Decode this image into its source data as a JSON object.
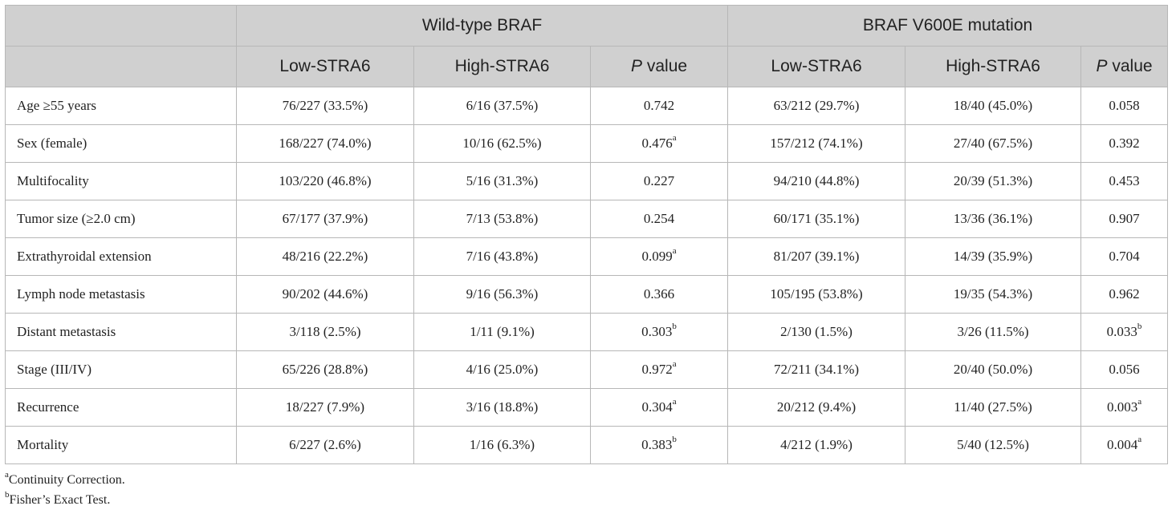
{
  "groups": [
    "Wild-type BRAF",
    "BRAF V600E mutation"
  ],
  "subheaders": [
    "Low-STRA6",
    "High-STRA6",
    "value",
    "Low-STRA6",
    "High-STRA6",
    "value"
  ],
  "p_italic": "P",
  "rows": [
    {
      "label": "Age ≥55 years",
      "c": [
        "76/227 (33.5%)",
        "6/16 (37.5%)",
        "0.742",
        "63/212 (29.7%)",
        "18/40 (45.0%)",
        "0.058"
      ],
      "s3": "",
      "s6": ""
    },
    {
      "label": "Sex (female)",
      "c": [
        "168/227 (74.0%)",
        "10/16 (62.5%)",
        "0.476",
        "157/212 (74.1%)",
        "27/40 (67.5%)",
        "0.392"
      ],
      "s3": "a",
      "s6": ""
    },
    {
      "label": "Multifocality",
      "c": [
        "103/220 (46.8%)",
        "5/16 (31.3%)",
        "0.227",
        "94/210 (44.8%)",
        "20/39 (51.3%)",
        "0.453"
      ],
      "s3": "",
      "s6": ""
    },
    {
      "label": "Tumor size (≥2.0 cm)",
      "c": [
        "67/177 (37.9%)",
        "7/13 (53.8%)",
        "0.254",
        "60/171 (35.1%)",
        "13/36 (36.1%)",
        "0.907"
      ],
      "s3": "",
      "s6": ""
    },
    {
      "label": "Extrathyroidal extension",
      "c": [
        "48/216 (22.2%)",
        "7/16 (43.8%)",
        "0.099",
        "81/207 (39.1%)",
        "14/39 (35.9%)",
        "0.704"
      ],
      "s3": "a",
      "s6": ""
    },
    {
      "label": "Lymph node metastasis",
      "c": [
        "90/202 (44.6%)",
        "9/16 (56.3%)",
        "0.366",
        "105/195 (53.8%)",
        "19/35 (54.3%)",
        "0.962"
      ],
      "s3": "",
      "s6": ""
    },
    {
      "label": "Distant metastasis",
      "c": [
        "3/118 (2.5%)",
        "1/11 (9.1%)",
        "0.303",
        "2/130 (1.5%)",
        "3/26 (11.5%)",
        "0.033"
      ],
      "s3": "b",
      "s6": "b"
    },
    {
      "label": "Stage (III/IV)",
      "c": [
        "65/226 (28.8%)",
        "4/16 (25.0%)",
        "0.972",
        "72/211 (34.1%)",
        "20/40 (50.0%)",
        "0.056"
      ],
      "s3": "a",
      "s6": ""
    },
    {
      "label": "Recurrence",
      "c": [
        "18/227 (7.9%)",
        "3/16 (18.8%)",
        "0.304",
        "20/212 (9.4%)",
        "11/40 (27.5%)",
        "0.003"
      ],
      "s3": "a",
      "s6": "a"
    },
    {
      "label": "Mortality",
      "c": [
        "6/227 (2.6%)",
        "1/16 (6.3%)",
        "0.383",
        "4/212 (1.9%)",
        "5/40 (12.5%)",
        "0.004"
      ],
      "s3": "b",
      "s6": "a"
    }
  ],
  "footnotes": [
    {
      "mark": "a",
      "text": "Continuity Correction."
    },
    {
      "mark": "b",
      "text": "Fisher’s Exact Test."
    }
  ]
}
